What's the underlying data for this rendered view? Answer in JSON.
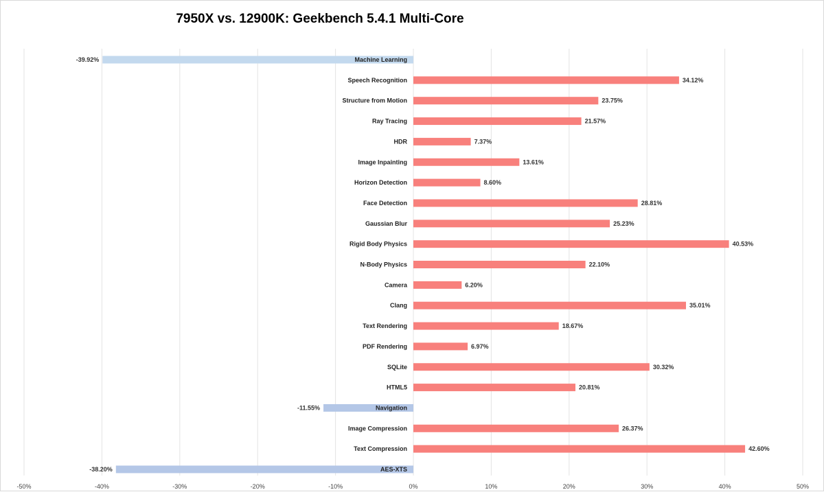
{
  "chart_data": {
    "type": "bar",
    "orientation": "horizontal",
    "title": "7950X vs. 12900K: Geekbench 5.4.1 Multi-Core",
    "xlabel": "",
    "ylabel": "",
    "xlim": [
      -50,
      50
    ],
    "grid": true,
    "categories": [
      "Machine Learning",
      "Speech Recognition",
      "Structure from Motion",
      "Ray Tracing",
      "HDR",
      "Image Inpainting",
      "Horizon Detection",
      "Face Detection",
      "Gaussian Blur",
      "Rigid Body Physics",
      "N-Body Physics",
      "Camera",
      "Clang",
      "Text Rendering",
      "PDF Rendering",
      "SQLite",
      "HTML5",
      "Navigation",
      "Image Compression",
      "Text Compression",
      "AES-XTS"
    ],
    "values": [
      -39.92,
      34.12,
      23.75,
      21.57,
      7.37,
      13.61,
      8.6,
      28.81,
      25.23,
      40.53,
      22.1,
      6.2,
      35.01,
      18.67,
      6.97,
      30.32,
      20.81,
      -11.55,
      26.37,
      42.6,
      -38.2
    ],
    "value_labels": [
      "-39.92%",
      "34.12%",
      "23.75%",
      "21.57%",
      "7.37%",
      "13.61%",
      "8.60%",
      "28.81%",
      "25.23%",
      "40.53%",
      "22.10%",
      "6.20%",
      "35.01%",
      "18.67%",
      "6.97%",
      "30.32%",
      "20.81%",
      "-11.55%",
      "26.37%",
      "42.60%",
      "-38.20%"
    ],
    "ticks": [
      -50,
      -40,
      -30,
      -20,
      -10,
      0,
      10,
      20,
      30,
      40,
      50
    ],
    "tick_labels": [
      "-50%",
      "-40%",
      "-30%",
      "-20%",
      "-10%",
      "0%",
      "10%",
      "20%",
      "30%",
      "40%",
      "50%"
    ],
    "colors": {
      "positive": "#f8807c",
      "negative_ml": "#c3d9ee",
      "negative_other": "#b4c7e7",
      "grid": "#e3e3e3"
    }
  }
}
